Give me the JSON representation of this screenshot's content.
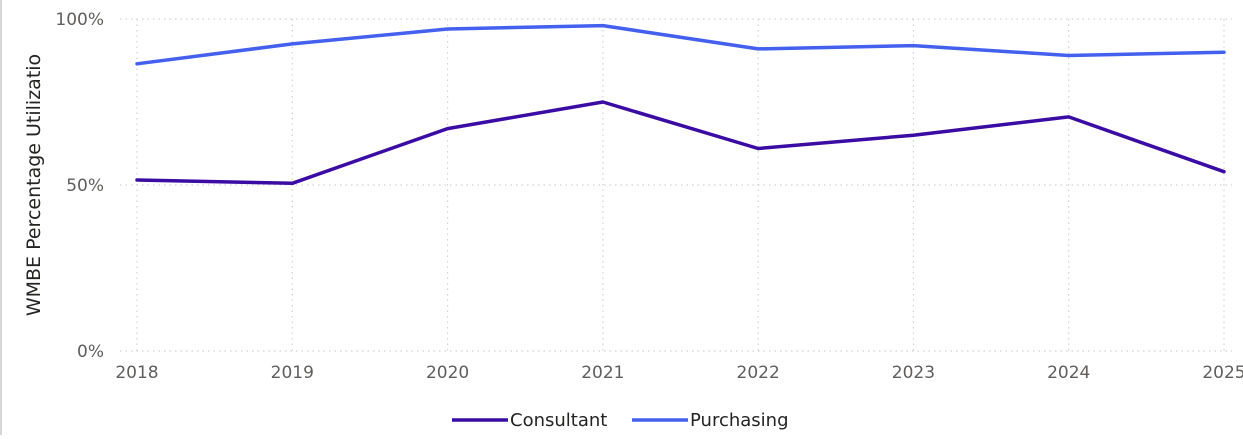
{
  "chart_data": {
    "type": "line",
    "title": "",
    "xlabel": "",
    "ylabel": "WMBE Percentage Utilizatio",
    "x": [
      "2018",
      "2019",
      "2020",
      "2021",
      "2022",
      "2023",
      "2024",
      "2025"
    ],
    "y_ticks": [
      "0%",
      "50%",
      "100%"
    ],
    "ylim": [
      0,
      100
    ],
    "grid": true,
    "legend_position": "bottom-center",
    "series": [
      {
        "name": "Consultant",
        "color": "#3a0ca3",
        "values": [
          51.5,
          50.5,
          67,
          75,
          61,
          65,
          70.5,
          54
        ]
      },
      {
        "name": "Purchasing",
        "color": "#4361ee",
        "values": [
          86.5,
          92.5,
          97,
          98,
          91,
          92,
          89,
          90
        ]
      }
    ]
  }
}
